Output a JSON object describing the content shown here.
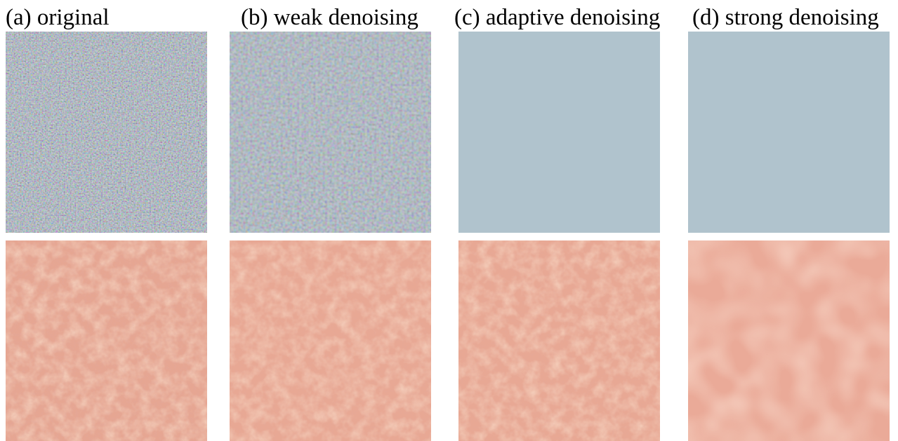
{
  "figure": {
    "captions": [
      "(a) original",
      "(b) weak denoising",
      "(c) adaptive denoising",
      "(d) strong denoising"
    ]
  }
}
